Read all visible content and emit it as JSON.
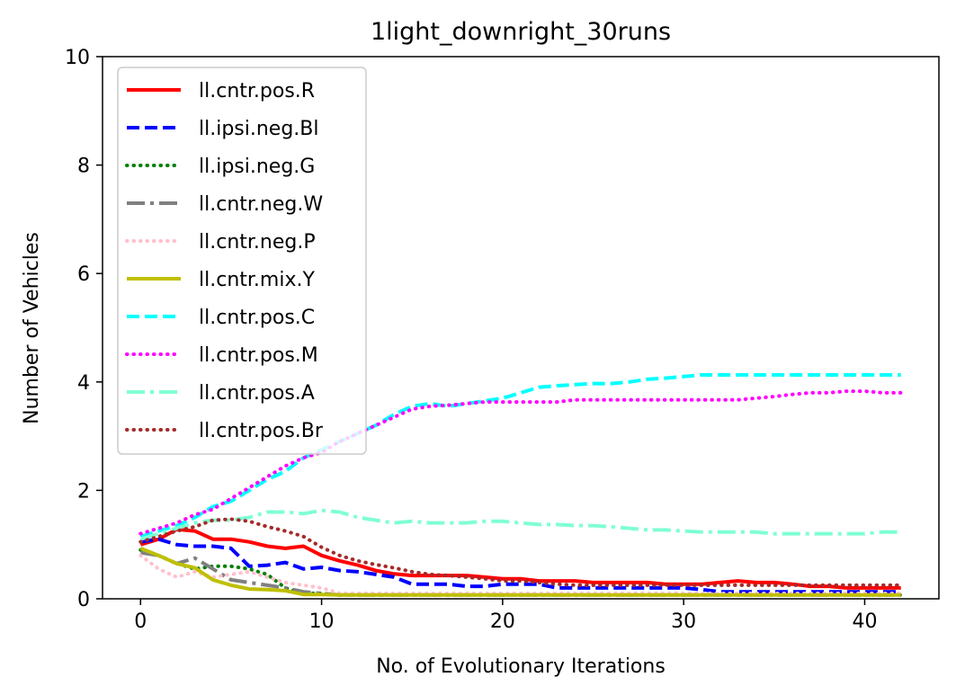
{
  "chart_data": {
    "type": "line",
    "title": "1light_downright_30runs",
    "xlabel": "No. of Evolutionary Iterations",
    "ylabel": "Number of Vehicles",
    "xlim": [
      -2.1,
      44.1
    ],
    "ylim": [
      0,
      10
    ],
    "xticks": [
      0,
      10,
      20,
      30,
      40
    ],
    "yticks": [
      0,
      2,
      4,
      6,
      8,
      10
    ],
    "grid": false,
    "legend_position": "upper-left",
    "x": [
      0,
      1,
      2,
      3,
      4,
      5,
      6,
      7,
      8,
      9,
      10,
      11,
      12,
      13,
      14,
      15,
      16,
      17,
      18,
      19,
      20,
      21,
      22,
      23,
      24,
      25,
      26,
      27,
      28,
      29,
      30,
      31,
      32,
      33,
      34,
      35,
      36,
      37,
      38,
      39,
      40,
      41,
      42
    ],
    "series": [
      {
        "name": "ll.cntr.pos.R",
        "color": "#ff0000",
        "dash": "solid",
        "values": [
          1.0,
          1.1,
          1.28,
          1.25,
          1.1,
          1.1,
          1.05,
          0.97,
          0.93,
          0.97,
          0.8,
          0.7,
          0.62,
          0.52,
          0.46,
          0.43,
          0.43,
          0.43,
          0.43,
          0.4,
          0.37,
          0.37,
          0.33,
          0.33,
          0.33,
          0.3,
          0.3,
          0.3,
          0.3,
          0.27,
          0.27,
          0.27,
          0.3,
          0.33,
          0.3,
          0.3,
          0.27,
          0.23,
          0.23,
          0.2,
          0.2,
          0.2,
          0.2
        ]
      },
      {
        "name": "ll.cntr.ipsi.neg.Bl",
        "label": "ll.ipsi.neg.Bl",
        "color": "#0000ff",
        "dash": "dashed",
        "values": [
          1.05,
          1.1,
          1.0,
          0.97,
          0.97,
          0.93,
          0.6,
          0.62,
          0.67,
          0.55,
          0.58,
          0.52,
          0.5,
          0.45,
          0.4,
          0.27,
          0.27,
          0.27,
          0.23,
          0.23,
          0.27,
          0.27,
          0.27,
          0.2,
          0.2,
          0.2,
          0.2,
          0.2,
          0.2,
          0.2,
          0.2,
          0.17,
          0.13,
          0.13,
          0.13,
          0.13,
          0.13,
          0.13,
          0.13,
          0.13,
          0.13,
          0.13,
          0.13
        ]
      },
      {
        "name": "ll.ipsi.neg.G",
        "color": "#008000",
        "dash": "dotted",
        "values": [
          0.9,
          0.8,
          0.65,
          0.55,
          0.6,
          0.6,
          0.55,
          0.45,
          0.2,
          0.1,
          0.1,
          0.07,
          0.07,
          0.07,
          0.07,
          0.07,
          0.07,
          0.07,
          0.07,
          0.07,
          0.07,
          0.07,
          0.07,
          0.07,
          0.07,
          0.07,
          0.07,
          0.07,
          0.07,
          0.07,
          0.07,
          0.07,
          0.07,
          0.07,
          0.07,
          0.07,
          0.07,
          0.07,
          0.07,
          0.07,
          0.07,
          0.07,
          0.07
        ]
      },
      {
        "name": "ll.cntr.neg.W",
        "color": "#808080",
        "dash": "dashdot",
        "values": [
          0.85,
          0.8,
          0.65,
          0.75,
          0.55,
          0.35,
          0.3,
          0.25,
          0.2,
          0.13,
          0.1,
          0.07,
          0.07,
          0.07,
          0.07,
          0.07,
          0.07,
          0.07,
          0.07,
          0.07,
          0.07,
          0.07,
          0.07,
          0.07,
          0.07,
          0.07,
          0.07,
          0.07,
          0.07,
          0.07,
          0.07,
          0.07,
          0.07,
          0.07,
          0.07,
          0.07,
          0.07,
          0.07,
          0.07,
          0.07,
          0.07,
          0.07,
          0.07
        ]
      },
      {
        "name": "ll.cntr.neg.P",
        "color": "#ffc0cb",
        "dash": "dotted",
        "values": [
          0.8,
          0.55,
          0.4,
          0.5,
          0.4,
          0.45,
          0.5,
          0.4,
          0.3,
          0.25,
          0.2,
          0.1,
          0.1,
          0.1,
          0.1,
          0.1,
          0.1,
          0.1,
          0.1,
          0.1,
          0.1,
          0.1,
          0.1,
          0.1,
          0.1,
          0.1,
          0.1,
          0.1,
          0.1,
          0.1,
          0.1,
          0.1,
          0.1,
          0.1,
          0.1,
          0.1,
          0.1,
          0.1,
          0.1,
          0.1,
          0.1,
          0.1,
          0.1
        ]
      },
      {
        "name": "ll.cntr.mix.Y",
        "color": "#bfbf00",
        "dash": "solid",
        "values": [
          0.93,
          0.8,
          0.65,
          0.57,
          0.35,
          0.25,
          0.18,
          0.17,
          0.15,
          0.08,
          0.08,
          0.07,
          0.07,
          0.07,
          0.07,
          0.07,
          0.07,
          0.07,
          0.07,
          0.07,
          0.07,
          0.07,
          0.07,
          0.07,
          0.07,
          0.07,
          0.07,
          0.07,
          0.07,
          0.07,
          0.07,
          0.07,
          0.07,
          0.07,
          0.07,
          0.07,
          0.07,
          0.07,
          0.07,
          0.07,
          0.07,
          0.07,
          0.07
        ]
      },
      {
        "name": "ll.cntr.pos.C",
        "color": "#00ffff",
        "dash": "dashed",
        "values": [
          1.15,
          1.25,
          1.35,
          1.5,
          1.7,
          1.8,
          2.0,
          2.2,
          2.35,
          2.6,
          2.75,
          2.9,
          3.05,
          3.2,
          3.4,
          3.55,
          3.6,
          3.55,
          3.6,
          3.65,
          3.7,
          3.8,
          3.9,
          3.93,
          3.95,
          3.97,
          3.97,
          4.0,
          4.05,
          4.07,
          4.1,
          4.13,
          4.13,
          4.13,
          4.13,
          4.13,
          4.13,
          4.13,
          4.13,
          4.13,
          4.13,
          4.13,
          4.13
        ]
      },
      {
        "name": "ll.cntr.pos.M",
        "color": "#ff00ff",
        "dash": "dotted",
        "values": [
          1.2,
          1.3,
          1.4,
          1.55,
          1.65,
          1.85,
          2.05,
          2.25,
          2.45,
          2.6,
          2.7,
          2.9,
          3.05,
          3.2,
          3.35,
          3.5,
          3.55,
          3.57,
          3.6,
          3.63,
          3.63,
          3.63,
          3.63,
          3.63,
          3.67,
          3.67,
          3.67,
          3.67,
          3.67,
          3.67,
          3.67,
          3.67,
          3.67,
          3.67,
          3.7,
          3.73,
          3.77,
          3.8,
          3.8,
          3.83,
          3.83,
          3.8,
          3.8
        ]
      },
      {
        "name": "ll.cntr.pos.A",
        "color": "#7fffd4",
        "dash": "dashdot",
        "values": [
          1.1,
          1.2,
          1.3,
          1.4,
          1.45,
          1.45,
          1.5,
          1.6,
          1.6,
          1.57,
          1.63,
          1.6,
          1.5,
          1.45,
          1.4,
          1.43,
          1.4,
          1.4,
          1.4,
          1.43,
          1.43,
          1.4,
          1.37,
          1.37,
          1.35,
          1.35,
          1.33,
          1.3,
          1.27,
          1.27,
          1.25,
          1.23,
          1.23,
          1.23,
          1.23,
          1.2,
          1.2,
          1.2,
          1.2,
          1.2,
          1.2,
          1.23,
          1.23
        ]
      },
      {
        "name": "ll.cntr.pos.Br",
        "color": "#a52a2a",
        "dash": "dotted",
        "values": [
          1.05,
          1.15,
          1.25,
          1.33,
          1.45,
          1.47,
          1.43,
          1.33,
          1.25,
          1.15,
          0.95,
          0.8,
          0.7,
          0.63,
          0.57,
          0.5,
          0.45,
          0.43,
          0.4,
          0.37,
          0.33,
          0.33,
          0.3,
          0.27,
          0.25,
          0.25,
          0.25,
          0.25,
          0.25,
          0.25,
          0.25,
          0.25,
          0.25,
          0.25,
          0.25,
          0.25,
          0.25,
          0.25,
          0.25,
          0.25,
          0.25,
          0.25,
          0.25
        ]
      }
    ]
  }
}
